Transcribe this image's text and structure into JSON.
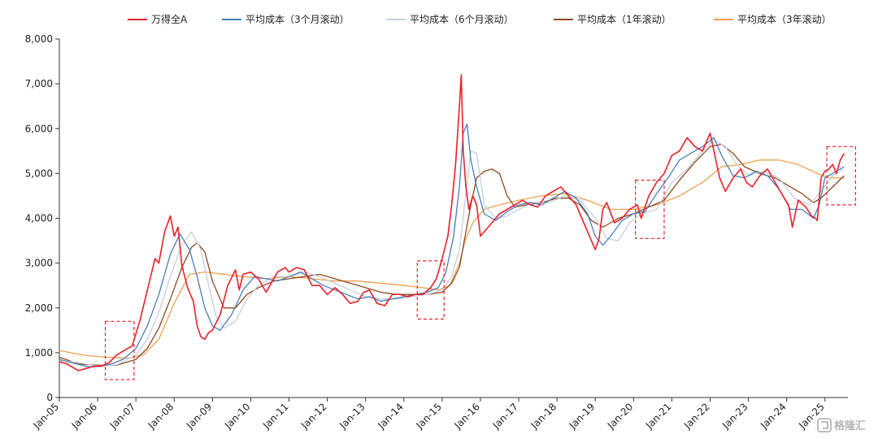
{
  "chart_data": {
    "type": "line",
    "title": "",
    "xlabel": "",
    "ylabel": "",
    "ylim": [
      0,
      8000
    ],
    "yticks": [
      0,
      1000,
      2000,
      3000,
      4000,
      5000,
      6000,
      7000,
      8000
    ],
    "ytick_labels": [
      "0",
      "1,000",
      "2,000",
      "3,000",
      "4,000",
      "5,000",
      "6,000",
      "7,000",
      "8,000"
    ],
    "xlim": [
      2005.0,
      2025.6
    ],
    "xticks": [
      2005,
      2006,
      2007,
      2008,
      2009,
      2010,
      2011,
      2012,
      2013,
      2014,
      2015,
      2016,
      2017,
      2018,
      2019,
      2020,
      2021,
      2022,
      2023,
      2024,
      2025
    ],
    "xtick_labels": [
      "Jan-05",
      "Jan-06",
      "Jan-07",
      "Jan-08",
      "Jan-09",
      "Jan-10",
      "Jan-11",
      "Jan-12",
      "Jan-13",
      "Jan-14",
      "Jan-15",
      "Jan-16",
      "Jan-17",
      "Jan-18",
      "Jan-19",
      "Jan-20",
      "Jan-21",
      "Jan-22",
      "Jan-23",
      "Jan-24",
      "Jan-25"
    ],
    "grid": false,
    "legend_position": "top",
    "series": [
      {
        "name": "万得全A",
        "color": "#e8202a",
        "x": [
          2005.0,
          2005.2,
          2005.4,
          2005.5,
          2005.7,
          2005.9,
          2006.1,
          2006.3,
          2006.5,
          2006.7,
          2006.9,
          2007.1,
          2007.3,
          2007.5,
          2007.6,
          2007.75,
          2007.9,
          2008.0,
          2008.1,
          2008.2,
          2008.35,
          2008.5,
          2008.6,
          2008.7,
          2008.8,
          2008.9,
          2009.0,
          2009.2,
          2009.4,
          2009.6,
          2009.7,
          2009.8,
          2010.0,
          2010.2,
          2010.4,
          2010.5,
          2010.7,
          2010.9,
          2011.0,
          2011.2,
          2011.4,
          2011.6,
          2011.8,
          2012.0,
          2012.2,
          2012.4,
          2012.6,
          2012.8,
          2012.95,
          2013.1,
          2013.3,
          2013.5,
          2013.7,
          2013.9,
          2014.1,
          2014.3,
          2014.5,
          2014.7,
          2014.85,
          2015.0,
          2015.15,
          2015.25,
          2015.35,
          2015.45,
          2015.5,
          2015.55,
          2015.62,
          2015.7,
          2015.8,
          2015.9,
          2016.0,
          2016.1,
          2016.3,
          2016.5,
          2016.7,
          2016.9,
          2017.1,
          2017.3,
          2017.5,
          2017.7,
          2017.9,
          2018.1,
          2018.3,
          2018.5,
          2018.7,
          2018.9,
          2019.0,
          2019.1,
          2019.2,
          2019.3,
          2019.5,
          2019.7,
          2019.9,
          2020.1,
          2020.2,
          2020.4,
          2020.6,
          2020.8,
          2021.0,
          2021.2,
          2021.4,
          2021.6,
          2021.8,
          2022.0,
          2022.1,
          2022.25,
          2022.4,
          2022.6,
          2022.8,
          2022.95,
          2023.1,
          2023.3,
          2023.5,
          2023.7,
          2023.9,
          2024.05,
          2024.15,
          2024.3,
          2024.5,
          2024.65,
          2024.75,
          2024.8,
          2024.9,
          2025.0,
          2025.1,
          2025.2,
          2025.3,
          2025.4,
          2025.5
        ],
        "y": [
          800,
          750,
          650,
          600,
          650,
          700,
          700,
          780,
          950,
          1050,
          1150,
          1700,
          2400,
          3100,
          3000,
          3700,
          4050,
          3600,
          3800,
          2950,
          2450,
          2150,
          1600,
          1350,
          1300,
          1450,
          1500,
          1850,
          2500,
          2850,
          2400,
          2750,
          2800,
          2650,
          2350,
          2500,
          2800,
          2900,
          2800,
          2900,
          2850,
          2500,
          2500,
          2300,
          2450,
          2300,
          2100,
          2150,
          2350,
          2400,
          2100,
          2050,
          2300,
          2300,
          2250,
          2300,
          2300,
          2450,
          2650,
          3100,
          3600,
          4300,
          5200,
          6500,
          7200,
          5500,
          4700,
          4200,
          4500,
          4300,
          3600,
          3700,
          3900,
          4100,
          4200,
          4300,
          4400,
          4300,
          4250,
          4500,
          4600,
          4700,
          4500,
          4300,
          3900,
          3500,
          3300,
          3550,
          4200,
          4350,
          3900,
          4000,
          4200,
          4300,
          4000,
          4500,
          4800,
          5000,
          5400,
          5500,
          5800,
          5600,
          5500,
          5900,
          5500,
          4900,
          4600,
          4900,
          5100,
          4800,
          4700,
          4950,
          5100,
          4800,
          4500,
          4300,
          3800,
          4400,
          4250,
          4050,
          4000,
          3950,
          4900,
          5050,
          5100,
          5200,
          5000,
          5300,
          5450
        ]
      },
      {
        "name": "平均成本（3个月滚动）",
        "color": "#4a7ebb",
        "x": [
          2005.0,
          2005.4,
          2005.8,
          2006.1,
          2006.4,
          2006.7,
          2007.0,
          2007.3,
          2007.6,
          2007.9,
          2008.15,
          2008.4,
          2008.6,
          2008.8,
          2009.0,
          2009.2,
          2009.5,
          2009.8,
          2010.1,
          2010.4,
          2010.7,
          2011.0,
          2011.3,
          2011.6,
          2011.9,
          2012.2,
          2012.5,
          2012.8,
          2013.1,
          2013.4,
          2013.7,
          2014.0,
          2014.3,
          2014.6,
          2014.9,
          2015.1,
          2015.3,
          2015.45,
          2015.55,
          2015.65,
          2015.75,
          2015.9,
          2016.1,
          2016.4,
          2016.7,
          2017.0,
          2017.3,
          2017.6,
          2017.9,
          2018.2,
          2018.5,
          2018.8,
          2019.0,
          2019.2,
          2019.4,
          2019.7,
          2020.0,
          2020.3,
          2020.6,
          2020.9,
          2021.2,
          2021.5,
          2021.8,
          2022.1,
          2022.3,
          2022.6,
          2022.9,
          2023.2,
          2023.5,
          2023.8,
          2024.1,
          2024.4,
          2024.7,
          2024.85,
          2025.0,
          2025.2,
          2025.5
        ],
        "y": [
          850,
          760,
          680,
          700,
          760,
          870,
          1100,
          1600,
          2300,
          3200,
          3650,
          3300,
          2700,
          2000,
          1600,
          1500,
          1850,
          2400,
          2700,
          2650,
          2600,
          2700,
          2800,
          2650,
          2500,
          2400,
          2300,
          2200,
          2250,
          2150,
          2200,
          2250,
          2300,
          2350,
          2450,
          2800,
          3600,
          4700,
          5900,
          6100,
          5300,
          4700,
          4100,
          3950,
          4150,
          4300,
          4350,
          4300,
          4450,
          4600,
          4450,
          4100,
          3600,
          3400,
          3600,
          3950,
          4100,
          4150,
          4550,
          4900,
          5300,
          5450,
          5600,
          5800,
          5400,
          4950,
          4900,
          5050,
          4950,
          4650,
          4200,
          4200,
          4000,
          4300,
          4900,
          5000,
          5150
        ]
      },
      {
        "name": "平均成本（6个月滚动）",
        "color": "#c5cfdc",
        "x": [
          2005.0,
          2005.5,
          2006.0,
          2006.5,
          2007.0,
          2007.3,
          2007.6,
          2007.9,
          2008.2,
          2008.45,
          2008.7,
          2008.9,
          2009.1,
          2009.3,
          2009.6,
          2009.9,
          2010.2,
          2010.6,
          2011.0,
          2011.4,
          2011.8,
          2012.2,
          2012.6,
          2013.0,
          2013.4,
          2013.8,
          2014.2,
          2014.6,
          2015.0,
          2015.25,
          2015.45,
          2015.6,
          2015.75,
          2015.9,
          2016.1,
          2016.4,
          2016.7,
          2017.0,
          2017.4,
          2017.8,
          2018.2,
          2018.6,
          2019.0,
          2019.3,
          2019.6,
          2019.9,
          2020.2,
          2020.6,
          2021.0,
          2021.4,
          2021.8,
          2022.1,
          2022.4,
          2022.7,
          2023.0,
          2023.4,
          2023.8,
          2024.2,
          2024.6,
          2024.9,
          2025.2,
          2025.5
        ],
        "y": [
          830,
          780,
          700,
          730,
          950,
          1300,
          1900,
          2700,
          3400,
          3700,
          3300,
          2500,
          1800,
          1550,
          1700,
          2200,
          2500,
          2700,
          2700,
          2800,
          2700,
          2550,
          2400,
          2250,
          2200,
          2200,
          2250,
          2300,
          2400,
          2700,
          3300,
          4400,
          5500,
          5450,
          4300,
          4000,
          4050,
          4200,
          4350,
          4350,
          4500,
          4400,
          4000,
          3550,
          3500,
          3900,
          4100,
          4200,
          4800,
          5100,
          5500,
          5750,
          5600,
          5200,
          4950,
          5050,
          4900,
          4450,
          4300,
          4600,
          4950,
          5100
        ]
      },
      {
        "name": "平均成本（1年滚动）",
        "color": "#8c4a1f",
        "x": [
          2005.0,
          2005.5,
          2006.0,
          2006.5,
          2007.0,
          2007.3,
          2007.6,
          2007.9,
          2008.2,
          2008.45,
          2008.6,
          2008.8,
          2009.0,
          2009.3,
          2009.6,
          2009.9,
          2010.2,
          2010.6,
          2011.0,
          2011.4,
          2011.8,
          2012.2,
          2012.6,
          2013.0,
          2013.4,
          2013.8,
          2014.2,
          2014.6,
          2015.0,
          2015.25,
          2015.45,
          2015.6,
          2015.75,
          2015.9,
          2016.1,
          2016.3,
          2016.5,
          2016.7,
          2016.9,
          2017.2,
          2017.6,
          2018.0,
          2018.3,
          2018.6,
          2018.9,
          2019.2,
          2019.6,
          2020.0,
          2020.4,
          2020.8,
          2021.2,
          2021.6,
          2022.0,
          2022.3,
          2022.6,
          2022.9,
          2023.3,
          2023.7,
          2024.1,
          2024.4,
          2024.7,
          2024.9,
          2025.2,
          2025.5
        ],
        "y": [
          900,
          750,
          720,
          720,
          850,
          1100,
          1550,
          2200,
          2900,
          3350,
          3450,
          3250,
          2600,
          2000,
          2000,
          2300,
          2450,
          2600,
          2650,
          2700,
          2750,
          2650,
          2550,
          2450,
          2350,
          2300,
          2300,
          2300,
          2350,
          2550,
          2900,
          3600,
          4300,
          4900,
          5050,
          5100,
          5000,
          4500,
          4250,
          4300,
          4350,
          4450,
          4450,
          4300,
          3950,
          3800,
          4000,
          4100,
          4250,
          4400,
          4850,
          5250,
          5600,
          5650,
          5450,
          5150,
          5000,
          4900,
          4700,
          4550,
          4350,
          4450,
          4700,
          4950
        ]
      },
      {
        "name": "平均成本（3年滚动）",
        "color": "#f0a050",
        "x": [
          2005.0,
          2005.6,
          2006.2,
          2006.8,
          2007.2,
          2007.6,
          2008.0,
          2008.4,
          2008.8,
          2009.3,
          2009.8,
          2010.4,
          2011.0,
          2011.6,
          2012.2,
          2012.8,
          2013.4,
          2014.0,
          2014.5,
          2014.9,
          2015.2,
          2015.45,
          2015.6,
          2015.8,
          2016.1,
          2016.5,
          2017.0,
          2017.6,
          2018.2,
          2018.8,
          2019.4,
          2020.0,
          2020.6,
          2021.2,
          2021.8,
          2022.3,
          2022.8,
          2023.3,
          2023.8,
          2024.3,
          2024.8,
          2025.1,
          2025.5
        ],
        "y": [
          1050,
          950,
          900,
          880,
          950,
          1300,
          2100,
          2750,
          2800,
          2750,
          2700,
          2650,
          2700,
          2650,
          2600,
          2600,
          2550,
          2500,
          2450,
          2400,
          2500,
          3000,
          3500,
          3900,
          4200,
          4300,
          4400,
          4500,
          4550,
          4400,
          4200,
          4200,
          4300,
          4500,
          4800,
          5150,
          5200,
          5300,
          5300,
          5200,
          5000,
          4900,
          4900
        ]
      }
    ],
    "annotations": [
      {
        "type": "dashed-box",
        "color": "#e8202a",
        "x_range": [
          2006.2,
          2006.95
        ],
        "y_range": [
          400,
          1700
        ]
      },
      {
        "type": "dashed-box",
        "color": "#e8202a",
        "x_range": [
          2014.35,
          2015.05
        ],
        "y_range": [
          1750,
          3050
        ]
      },
      {
        "type": "dashed-box",
        "color": "#e8202a",
        "x_range": [
          2020.05,
          2020.8
        ],
        "y_range": [
          3550,
          4850
        ]
      },
      {
        "type": "dashed-box",
        "color": "#e8202a",
        "x_range": [
          2025.05,
          2025.8
        ],
        "y_range": [
          4300,
          5600
        ]
      }
    ]
  },
  "watermark": {
    "text": "格隆汇",
    "icon": "logo-icon"
  }
}
